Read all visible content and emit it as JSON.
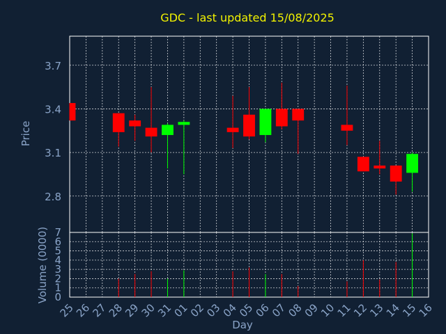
{
  "chart_data": {
    "type": "candlestick",
    "title": "GDC - last updated 15/08/2025",
    "xlabel": "Day",
    "colors": {
      "background": "#112033",
      "plot_background": "#112033",
      "up": "#00ff00",
      "down": "#ff0000",
      "grid": "#ffffff",
      "title": "#f2f200",
      "text": "#8aa4c8"
    },
    "grid": true,
    "categories": [
      "25",
      "26",
      "27",
      "28",
      "29",
      "30",
      "31",
      "01",
      "02",
      "03",
      "04",
      "05",
      "06",
      "07",
      "08",
      "09",
      "10",
      "11",
      "12",
      "13",
      "14",
      "15",
      "16"
    ],
    "price_panel": {
      "ylabel": "Price",
      "ylim": [
        2.55,
        3.9
      ],
      "ticks": [
        "2.8",
        "3.1",
        "3.4",
        "3.7"
      ],
      "candles": [
        {
          "day": "25",
          "open": 3.44,
          "high": 3.44,
          "low": 3.32,
          "close": 3.32
        },
        {
          "day": "28",
          "open": 3.37,
          "high": 3.37,
          "low": 3.14,
          "close": 3.24
        },
        {
          "day": "29",
          "open": 3.32,
          "high": 3.36,
          "low": 3.18,
          "close": 3.28
        },
        {
          "day": "30",
          "open": 3.27,
          "high": 3.55,
          "low": 3.1,
          "close": 3.21
        },
        {
          "day": "31",
          "open": 3.22,
          "high": 3.3,
          "low": 2.99,
          "close": 3.29
        },
        {
          "day": "01",
          "open": 3.29,
          "high": 3.32,
          "low": 2.95,
          "close": 3.31
        },
        {
          "day": "04",
          "open": 3.27,
          "high": 3.49,
          "low": 3.13,
          "close": 3.24
        },
        {
          "day": "05",
          "open": 3.36,
          "high": 3.55,
          "low": 3.19,
          "close": 3.21
        },
        {
          "day": "06",
          "open": 3.22,
          "high": 3.4,
          "low": 3.17,
          "close": 3.4
        },
        {
          "day": "07",
          "open": 3.4,
          "high": 3.58,
          "low": 3.26,
          "close": 3.28
        },
        {
          "day": "08",
          "open": 3.4,
          "high": 3.4,
          "low": 3.09,
          "close": 3.32
        },
        {
          "day": "11",
          "open": 3.29,
          "high": 3.56,
          "low": 3.15,
          "close": 3.25
        },
        {
          "day": "12",
          "open": 3.07,
          "high": 3.07,
          "low": 2.97,
          "close": 2.97
        },
        {
          "day": "13",
          "open": 3.01,
          "high": 3.18,
          "low": 2.95,
          "close": 2.99
        },
        {
          "day": "14",
          "open": 3.01,
          "high": 3.01,
          "low": 2.81,
          "close": 2.9
        },
        {
          "day": "15",
          "open": 2.96,
          "high": 3.1,
          "low": 2.83,
          "close": 3.09
        }
      ]
    },
    "volume_panel": {
      "ylabel": "Volume (0000)",
      "ylim": [
        0,
        7
      ],
      "ticks": [
        "0",
        "1",
        "2",
        "3",
        "4",
        "5",
        "6",
        "7"
      ],
      "bars": [
        {
          "day": "28",
          "value": 2.0,
          "direction": "down"
        },
        {
          "day": "29",
          "value": 2.5,
          "direction": "down"
        },
        {
          "day": "30",
          "value": 2.8,
          "direction": "down"
        },
        {
          "day": "31",
          "value": 2.0,
          "direction": "up"
        },
        {
          "day": "01",
          "value": 2.9,
          "direction": "up"
        },
        {
          "day": "04",
          "value": 2.8,
          "direction": "down"
        },
        {
          "day": "05",
          "value": 3.2,
          "direction": "down"
        },
        {
          "day": "06",
          "value": 2.5,
          "direction": "up"
        },
        {
          "day": "07",
          "value": 2.5,
          "direction": "down"
        },
        {
          "day": "08",
          "value": 1.2,
          "direction": "down"
        },
        {
          "day": "11",
          "value": 1.7,
          "direction": "down"
        },
        {
          "day": "12",
          "value": 4.0,
          "direction": "down"
        },
        {
          "day": "13",
          "value": 1.9,
          "direction": "down"
        },
        {
          "day": "14",
          "value": 3.8,
          "direction": "down"
        },
        {
          "day": "15",
          "value": 6.9,
          "direction": "up"
        }
      ]
    }
  }
}
